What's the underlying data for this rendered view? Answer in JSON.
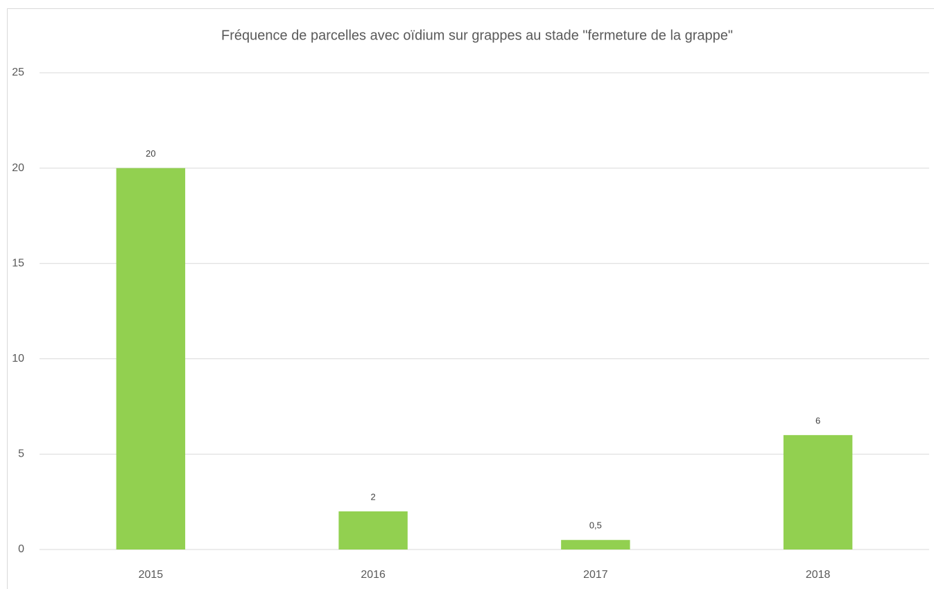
{
  "chart_data": {
    "type": "bar",
    "title": "Fréquence de parcelles avec oïdium sur grappes au stade \"fermeture de la grappe\"",
    "categories": [
      "2015",
      "2016",
      "2017",
      "2018"
    ],
    "values": [
      20,
      2,
      0.5,
      6
    ],
    "value_labels": [
      "20",
      "2",
      "0,5",
      "6"
    ],
    "color": "#92d050",
    "ylim": [
      0,
      25
    ],
    "yticks": [
      0,
      5,
      10,
      15,
      20,
      25
    ],
    "grid": true
  }
}
